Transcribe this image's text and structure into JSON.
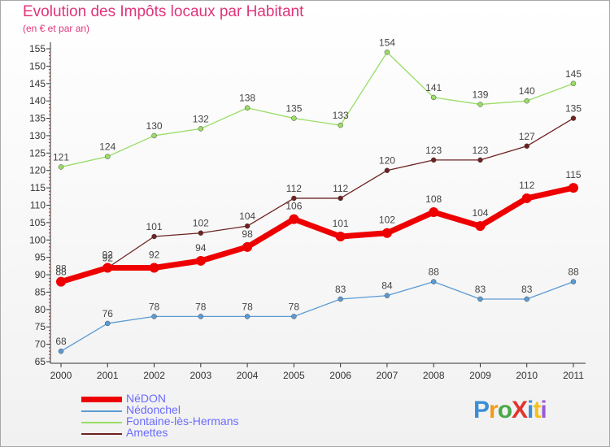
{
  "title": "Evolution des Impôts locaux par Habitant",
  "subtitle": "(en € et par an)",
  "brand": "ProXiti",
  "colors": {
    "nedon": "#ee0000",
    "nedonchel": "#5b9bd5",
    "fontaine": "#99dd66",
    "amettes": "#6e2222",
    "title": "#e0347a",
    "legend_text": "#6b6bff"
  },
  "chart_data": {
    "type": "line",
    "title": "Evolution des Impôts locaux par Habitant",
    "subtitle": "(en € et par an)",
    "x": [
      "2000",
      "2001",
      "2002",
      "2003",
      "2004",
      "2005",
      "2006",
      "2007",
      "2008",
      "2009",
      "2010",
      "2011"
    ],
    "ylim": [
      65,
      155
    ],
    "yticks": [
      65,
      70,
      75,
      80,
      85,
      90,
      95,
      100,
      105,
      110,
      115,
      120,
      125,
      130,
      135,
      140,
      145,
      150,
      155
    ],
    "grid": false,
    "legend_position": "bottom-left",
    "series": [
      {
        "name": "NéDON",
        "color": "#ee0000",
        "values": [
          88,
          92,
          92,
          94,
          98,
          106,
          101,
          102,
          108,
          104,
          112,
          115
        ]
      },
      {
        "name": "Nédonchel",
        "color": "#5b9bd5",
        "values": [
          68,
          76,
          78,
          78,
          78,
          78,
          83,
          84,
          88,
          83,
          83,
          88
        ]
      },
      {
        "name": "Fontaine-lès-Hermans",
        "color": "#99dd66",
        "values": [
          121,
          124,
          130,
          132,
          138,
          135,
          133,
          154,
          141,
          139,
          140,
          145
        ]
      },
      {
        "name": "Amettes",
        "color": "#6e2222",
        "values": [
          88,
          92,
          101,
          102,
          104,
          112,
          112,
          120,
          123,
          123,
          127,
          135
        ]
      }
    ]
  }
}
